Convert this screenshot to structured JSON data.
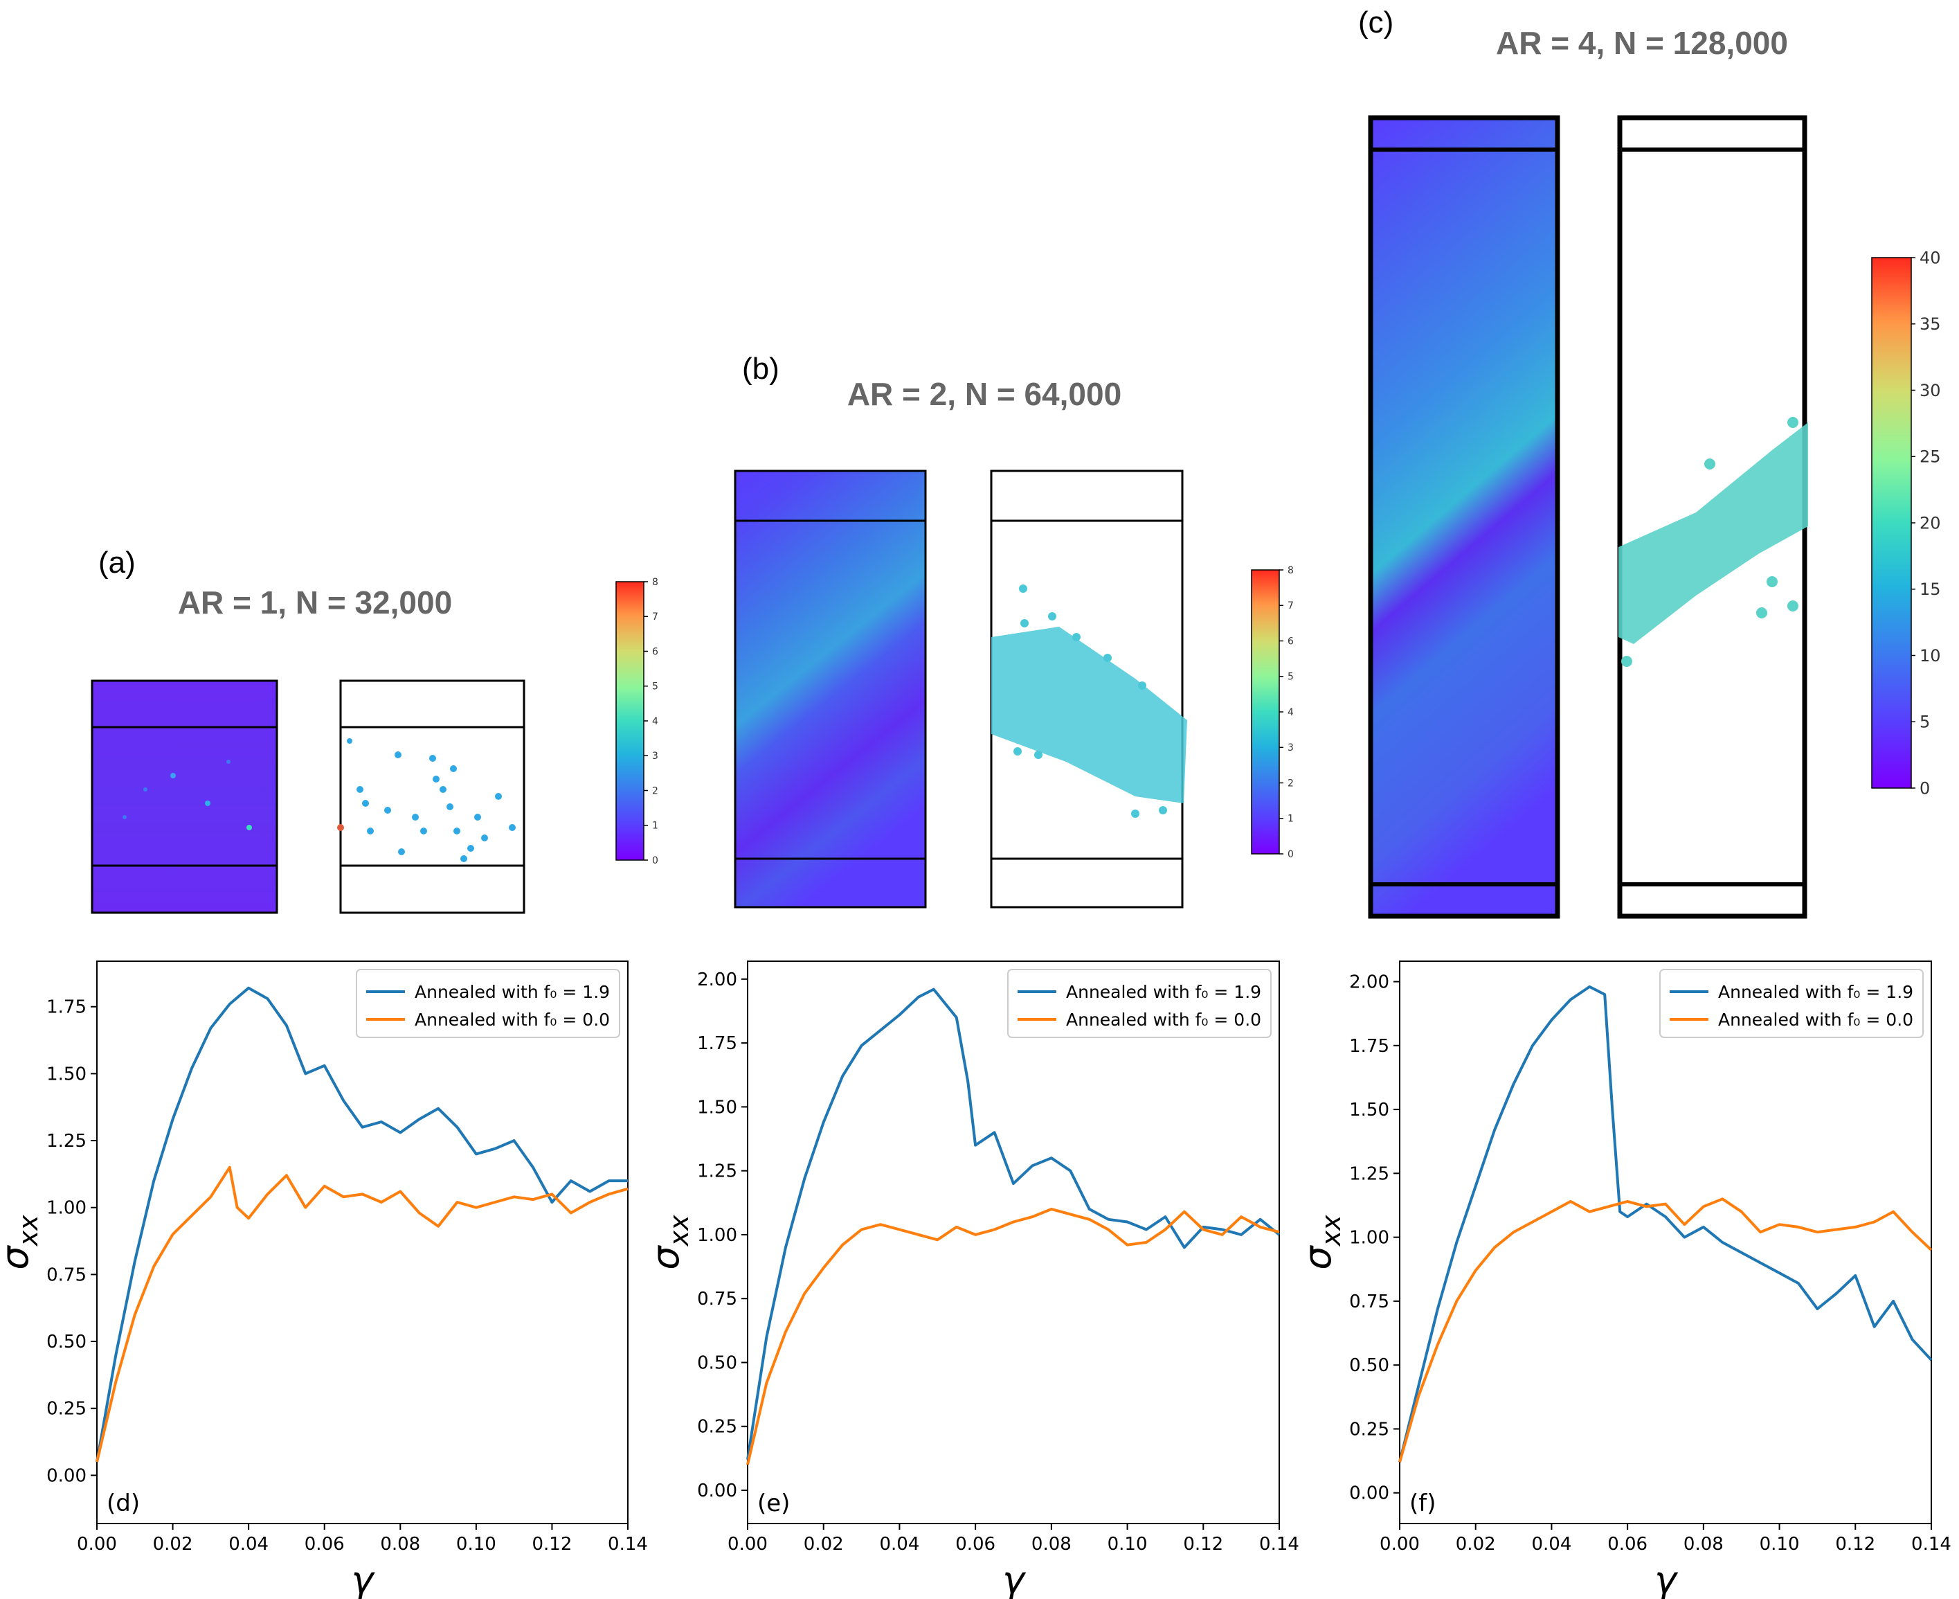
{
  "snapshots": [
    {
      "label": "(a)",
      "title": "AR = 1, N = 32,000",
      "colorbar_ticks": [
        "0",
        "1",
        "2",
        "3",
        "4",
        "5",
        "6",
        "7",
        "8"
      ],
      "colorbar_max": 8
    },
    {
      "label": "(b)",
      "title": "AR = 2, N = 64,000",
      "colorbar_ticks": [
        "0",
        "1",
        "2",
        "3",
        "4",
        "5",
        "6",
        "7",
        "8"
      ],
      "colorbar_max": 8
    },
    {
      "label": "(c)",
      "title": "AR = 4, N = 128,000",
      "colorbar_ticks": [
        "0",
        "5",
        "10",
        "15",
        "20",
        "25",
        "30",
        "35",
        "40"
      ],
      "colorbar_max": 40
    }
  ],
  "colors": {
    "f0_19": "#1f77b4",
    "f0_00": "#ff7f0e",
    "title_gray": "#666666"
  },
  "chart_data": [
    {
      "type": "line",
      "panel_label": "(d)",
      "xlabel": "γ",
      "ylabel": "σ",
      "ylabel_sub": "xx",
      "xlim": [
        0.0,
        0.14
      ],
      "ylim": [
        -0.18,
        1.92
      ],
      "xticks": [
        "0.00",
        "0.02",
        "0.04",
        "0.06",
        "0.08",
        "0.10",
        "0.12",
        "0.14"
      ],
      "yticks": [
        "0.00",
        "0.25",
        "0.50",
        "0.75",
        "1.00",
        "1.25",
        "1.50",
        "1.75"
      ],
      "legend": "top-right",
      "series": [
        {
          "name": "Annealed with f₀ = 1.9",
          "color": "#1f77b4",
          "x": [
            0.0,
            0.005,
            0.01,
            0.015,
            0.02,
            0.025,
            0.03,
            0.035,
            0.04,
            0.045,
            0.05,
            0.055,
            0.06,
            0.065,
            0.07,
            0.075,
            0.08,
            0.085,
            0.09,
            0.095,
            0.1,
            0.105,
            0.11,
            0.115,
            0.12,
            0.125,
            0.13,
            0.135,
            0.14
          ],
          "y": [
            0.05,
            0.45,
            0.8,
            1.1,
            1.33,
            1.52,
            1.67,
            1.76,
            1.82,
            1.78,
            1.68,
            1.5,
            1.53,
            1.4,
            1.3,
            1.32,
            1.28,
            1.33,
            1.37,
            1.3,
            1.2,
            1.22,
            1.25,
            1.15,
            1.02,
            1.1,
            1.06,
            1.1,
            1.1
          ]
        },
        {
          "name": "Annealed with f₀ = 0.0",
          "color": "#ff7f0e",
          "x": [
            0.0,
            0.005,
            0.01,
            0.015,
            0.02,
            0.025,
            0.03,
            0.035,
            0.037,
            0.04,
            0.045,
            0.05,
            0.055,
            0.06,
            0.065,
            0.07,
            0.075,
            0.08,
            0.085,
            0.09,
            0.095,
            0.1,
            0.105,
            0.11,
            0.115,
            0.12,
            0.125,
            0.13,
            0.135,
            0.14
          ],
          "y": [
            0.05,
            0.35,
            0.6,
            0.78,
            0.9,
            0.97,
            1.04,
            1.15,
            1.0,
            0.96,
            1.05,
            1.12,
            1.0,
            1.08,
            1.04,
            1.05,
            1.02,
            1.06,
            0.98,
            0.93,
            1.02,
            1.0,
            1.02,
            1.04,
            1.03,
            1.05,
            0.98,
            1.02,
            1.05,
            1.07
          ]
        }
      ]
    },
    {
      "type": "line",
      "panel_label": "(e)",
      "xlabel": "γ",
      "ylabel": "σ",
      "ylabel_sub": "xx",
      "xlim": [
        0.0,
        0.14
      ],
      "ylim": [
        -0.13,
        2.07
      ],
      "xticks": [
        "0.00",
        "0.02",
        "0.04",
        "0.06",
        "0.08",
        "0.10",
        "0.12",
        "0.14"
      ],
      "yticks": [
        "0.00",
        "0.25",
        "0.50",
        "0.75",
        "1.00",
        "1.25",
        "1.50",
        "1.75",
        "2.00"
      ],
      "legend": "top-right",
      "series": [
        {
          "name": "Annealed with f₀ = 1.9",
          "color": "#1f77b4",
          "x": [
            0.0,
            0.005,
            0.01,
            0.015,
            0.02,
            0.025,
            0.03,
            0.035,
            0.04,
            0.045,
            0.049,
            0.055,
            0.058,
            0.06,
            0.065,
            0.07,
            0.075,
            0.08,
            0.085,
            0.09,
            0.095,
            0.1,
            0.105,
            0.11,
            0.115,
            0.12,
            0.125,
            0.13,
            0.135,
            0.14
          ],
          "y": [
            0.12,
            0.6,
            0.95,
            1.22,
            1.44,
            1.62,
            1.74,
            1.8,
            1.86,
            1.93,
            1.96,
            1.85,
            1.6,
            1.35,
            1.4,
            1.2,
            1.27,
            1.3,
            1.25,
            1.1,
            1.06,
            1.05,
            1.02,
            1.07,
            0.95,
            1.03,
            1.02,
            1.0,
            1.06,
            1.0
          ]
        },
        {
          "name": "Annealed with f₀ = 0.0",
          "color": "#ff7f0e",
          "x": [
            0.0,
            0.005,
            0.01,
            0.015,
            0.02,
            0.025,
            0.03,
            0.035,
            0.04,
            0.045,
            0.05,
            0.055,
            0.06,
            0.065,
            0.07,
            0.075,
            0.08,
            0.085,
            0.09,
            0.095,
            0.1,
            0.105,
            0.11,
            0.115,
            0.12,
            0.125,
            0.13,
            0.135,
            0.14
          ],
          "y": [
            0.1,
            0.42,
            0.62,
            0.77,
            0.87,
            0.96,
            1.02,
            1.04,
            1.02,
            1.0,
            0.98,
            1.03,
            1.0,
            1.02,
            1.05,
            1.07,
            1.1,
            1.08,
            1.06,
            1.02,
            0.96,
            0.97,
            1.02,
            1.09,
            1.02,
            1.0,
            1.07,
            1.03,
            1.01
          ]
        }
      ]
    },
    {
      "type": "line",
      "panel_label": "(f)",
      "xlabel": "γ",
      "ylabel": "σ",
      "ylabel_sub": "xx",
      "xlim": [
        0.0,
        0.14
      ],
      "ylim": [
        -0.12,
        2.08
      ],
      "xticks": [
        "0.00",
        "0.02",
        "0.04",
        "0.06",
        "0.08",
        "0.10",
        "0.12",
        "0.14"
      ],
      "yticks": [
        "0.00",
        "0.25",
        "0.50",
        "0.75",
        "1.00",
        "1.25",
        "1.50",
        "1.75",
        "2.00"
      ],
      "legend": "top-right",
      "series": [
        {
          "name": "Annealed with f₀ = 1.9",
          "color": "#1f77b4",
          "x": [
            0.0,
            0.005,
            0.01,
            0.015,
            0.02,
            0.025,
            0.03,
            0.035,
            0.04,
            0.045,
            0.05,
            0.054,
            0.056,
            0.058,
            0.06,
            0.065,
            0.07,
            0.075,
            0.08,
            0.085,
            0.09,
            0.095,
            0.1,
            0.105,
            0.11,
            0.115,
            0.12,
            0.125,
            0.13,
            0.135,
            0.14
          ],
          "y": [
            0.12,
            0.42,
            0.72,
            0.98,
            1.2,
            1.42,
            1.6,
            1.75,
            1.85,
            1.93,
            1.98,
            1.95,
            1.5,
            1.1,
            1.08,
            1.13,
            1.08,
            1.0,
            1.04,
            0.98,
            0.94,
            0.9,
            0.86,
            0.82,
            0.72,
            0.78,
            0.85,
            0.65,
            0.75,
            0.6,
            0.52
          ]
        },
        {
          "name": "Annealed with f₀ = 0.0",
          "color": "#ff7f0e",
          "x": [
            0.0,
            0.005,
            0.01,
            0.015,
            0.02,
            0.025,
            0.03,
            0.035,
            0.04,
            0.045,
            0.05,
            0.055,
            0.06,
            0.065,
            0.07,
            0.075,
            0.08,
            0.085,
            0.09,
            0.095,
            0.1,
            0.105,
            0.11,
            0.115,
            0.12,
            0.125,
            0.13,
            0.135,
            0.14
          ],
          "y": [
            0.12,
            0.38,
            0.58,
            0.75,
            0.87,
            0.96,
            1.02,
            1.06,
            1.1,
            1.14,
            1.1,
            1.12,
            1.14,
            1.12,
            1.13,
            1.05,
            1.12,
            1.15,
            1.1,
            1.02,
            1.05,
            1.04,
            1.02,
            1.03,
            1.04,
            1.06,
            1.1,
            1.02,
            0.95
          ]
        }
      ]
    }
  ]
}
